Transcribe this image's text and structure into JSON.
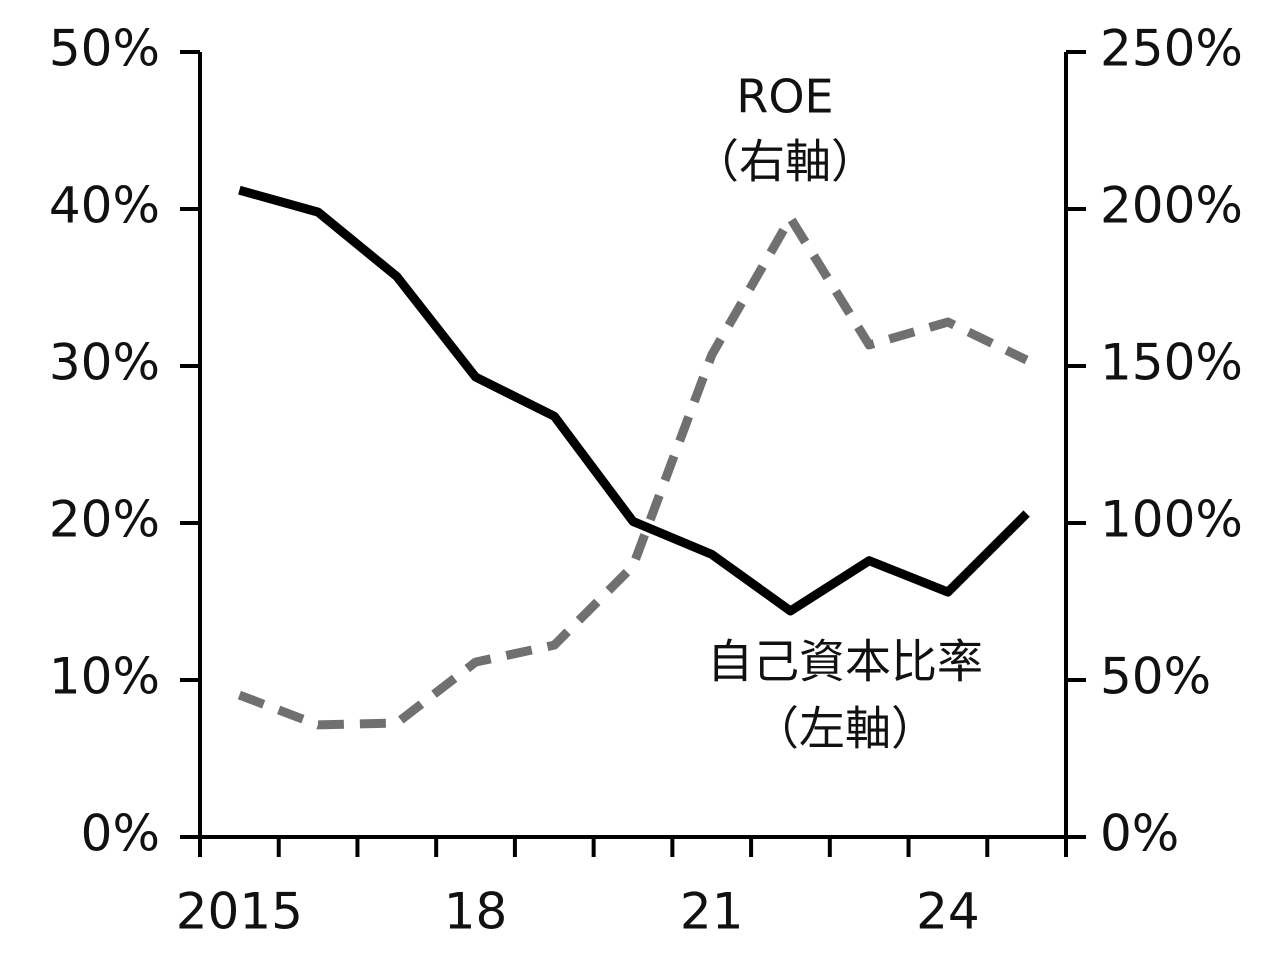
{
  "chart_data": {
    "type": "line",
    "categories": [
      "2015",
      null,
      null,
      "18",
      null,
      null,
      "21",
      null,
      null,
      "24",
      null
    ],
    "series": [
      {
        "name": "自己資本比率",
        "axis_note": "（左軸）",
        "color": "#000000",
        "style": "solid",
        "axis": "y",
        "values": [
          41.2,
          39.8,
          35.7,
          29.3,
          26.8,
          20.1,
          18.0,
          14.4,
          17.6,
          15.6,
          20.6
        ]
      },
      {
        "name": "ROE",
        "axis_note": "（右軸）",
        "color": "#707070",
        "style": "dashed",
        "axis": "y2",
        "values": [
          45.2,
          35.7,
          36.3,
          55.7,
          61.1,
          86.3,
          153.5,
          197.1,
          156.7,
          164.0,
          151.9
        ]
      }
    ],
    "ylim": [
      0,
      50
    ],
    "yticks": [
      {
        "value": 0,
        "label": "0%"
      },
      {
        "value": 10,
        "label": "10%"
      },
      {
        "value": 20,
        "label": "20%"
      },
      {
        "value": 30,
        "label": "30%"
      },
      {
        "value": 40,
        "label": "40%"
      },
      {
        "value": 50,
        "label": "50%"
      }
    ],
    "y2lim": [
      0,
      250
    ],
    "y2ticks": [
      {
        "value": 0,
        "label": "0%"
      },
      {
        "value": 50,
        "label": "50%"
      },
      {
        "value": 100,
        "label": "100%"
      },
      {
        "value": 150,
        "label": "150%"
      },
      {
        "value": 200,
        "label": "200%"
      },
      {
        "value": 250,
        "label": "250%"
      }
    ],
    "grid": false
  }
}
